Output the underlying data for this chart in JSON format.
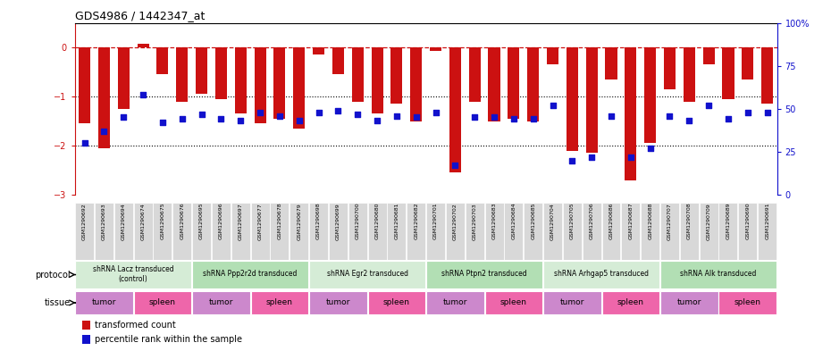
{
  "title": "GDS4986 / 1442347_at",
  "samples": [
    "GSM1290692",
    "GSM1290693",
    "GSM1290694",
    "GSM1290674",
    "GSM1290675",
    "GSM1290676",
    "GSM1290695",
    "GSM1290696",
    "GSM1290697",
    "GSM1290677",
    "GSM1290678",
    "GSM1290679",
    "GSM1290698",
    "GSM1290699",
    "GSM1290700",
    "GSM1290680",
    "GSM1290681",
    "GSM1290682",
    "GSM1290701",
    "GSM1290702",
    "GSM1290703",
    "GSM1290683",
    "GSM1290684",
    "GSM1290685",
    "GSM1290704",
    "GSM1290705",
    "GSM1290706",
    "GSM1290686",
    "GSM1290687",
    "GSM1290688",
    "GSM1290707",
    "GSM1290708",
    "GSM1290709",
    "GSM1290689",
    "GSM1290690",
    "GSM1290691"
  ],
  "bar_values": [
    -1.55,
    -2.05,
    -1.25,
    0.08,
    -0.55,
    -1.1,
    -0.95,
    -1.05,
    -1.35,
    -1.55,
    -1.45,
    -1.65,
    -0.15,
    -0.55,
    -1.1,
    -1.35,
    -1.15,
    -1.5,
    -0.08,
    -2.55,
    -1.1,
    -1.5,
    -1.45,
    -1.5,
    -0.35,
    -2.1,
    -2.15,
    -0.65,
    -2.7,
    -1.95,
    -0.85,
    -1.1,
    -0.35,
    -1.05,
    -0.65,
    -1.15
  ],
  "percentile_values": [
    30,
    37,
    45,
    58,
    42,
    44,
    47,
    44,
    43,
    48,
    46,
    43,
    48,
    49,
    47,
    43,
    46,
    45,
    48,
    17,
    45,
    45,
    44,
    44,
    52,
    20,
    22,
    46,
    22,
    27,
    46,
    43,
    52,
    44,
    48,
    48
  ],
  "protocols": [
    {
      "label": "shRNA Lacz transduced\n(control)",
      "start": 0,
      "end": 6,
      "color": "#d5ecd6"
    },
    {
      "label": "shRNA Ppp2r2d transduced",
      "start": 6,
      "end": 12,
      "color": "#b2dfb4"
    },
    {
      "label": "shRNA Egr2 transduced",
      "start": 12,
      "end": 18,
      "color": "#d5ecd6"
    },
    {
      "label": "shRNA Ptpn2 transduced",
      "start": 18,
      "end": 24,
      "color": "#b2dfb4"
    },
    {
      "label": "shRNA Arhgap5 transduced",
      "start": 24,
      "end": 30,
      "color": "#d5ecd6"
    },
    {
      "label": "shRNA Alk transduced",
      "start": 30,
      "end": 36,
      "color": "#b2dfb4"
    }
  ],
  "tissues": [
    {
      "label": "tumor",
      "start": 0,
      "end": 3,
      "color": "#cc88cc"
    },
    {
      "label": "spleen",
      "start": 3,
      "end": 6,
      "color": "#ee66aa"
    },
    {
      "label": "tumor",
      "start": 6,
      "end": 9,
      "color": "#cc88cc"
    },
    {
      "label": "spleen",
      "start": 9,
      "end": 12,
      "color": "#ee66aa"
    },
    {
      "label": "tumor",
      "start": 12,
      "end": 15,
      "color": "#cc88cc"
    },
    {
      "label": "spleen",
      "start": 15,
      "end": 18,
      "color": "#ee66aa"
    },
    {
      "label": "tumor",
      "start": 18,
      "end": 21,
      "color": "#cc88cc"
    },
    {
      "label": "spleen",
      "start": 21,
      "end": 24,
      "color": "#ee66aa"
    },
    {
      "label": "tumor",
      "start": 24,
      "end": 27,
      "color": "#cc88cc"
    },
    {
      "label": "spleen",
      "start": 27,
      "end": 30,
      "color": "#ee66aa"
    },
    {
      "label": "tumor",
      "start": 30,
      "end": 33,
      "color": "#cc88cc"
    },
    {
      "label": "spleen",
      "start": 33,
      "end": 36,
      "color": "#ee66aa"
    }
  ],
  "bar_color": "#cc1111",
  "dot_color": "#1111cc",
  "ylim_left": [
    -3.0,
    0.5
  ],
  "ylim_right": [
    0,
    100
  ],
  "yticks_left": [
    0,
    -1,
    -2,
    -3
  ],
  "yticks_right": [
    0,
    25,
    50,
    75,
    100
  ],
  "hlines_dashed": [
    0
  ],
  "hlines_dotted": [
    -1,
    -2
  ],
  "legend_items": [
    {
      "label": "transformed count",
      "color": "#cc1111"
    },
    {
      "label": "percentile rank within the sample",
      "color": "#1111cc"
    }
  ]
}
